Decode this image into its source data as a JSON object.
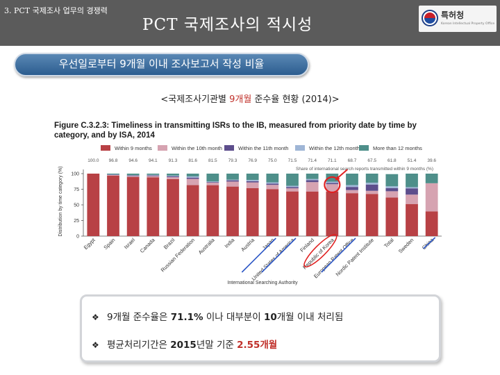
{
  "header": {
    "section_label": "3. PCT 국제조사 업무의 경쟁력",
    "title": "PCT 국제조사의 적시성",
    "logo_name": "특허청",
    "logo_sub": "Korean Intellectual Property Office"
  },
  "banner": {
    "text": "우선일로부터 9개월 이내 조사보고서 작성 비율"
  },
  "caption": {
    "before": "<국제조사기관별 ",
    "highlight": "9개월",
    "after": " 준수율 현황 (2014)>"
  },
  "figure": {
    "title_line1": "Figure C.3.2.3: Timeliness in transmitting ISRs to the IB, measured from priority date by time by",
    "title_line2": "category, and by ISA, 2014"
  },
  "chart_data": {
    "type": "bar",
    "stacked": true,
    "percent_scale": true,
    "ylabel": "Distribution by time category (%)",
    "xlabel": "International Searching Authority",
    "ylim": [
      0,
      100
    ],
    "yticks": [
      0,
      25,
      50,
      75,
      100
    ],
    "share_label": "Share of international search reports transmitted within 9 months (%)",
    "categories": [
      "Egypt",
      "Spain",
      "Israel",
      "Canada",
      "Brazil",
      "Russian Federation",
      "Australia",
      "India",
      "Austria",
      "Japan",
      "United States of America",
      "Finland",
      "Republic of Korea",
      "European Patent Office",
      "Nordic Patent Institute",
      "Total",
      "Sweden",
      "China"
    ],
    "share_labels": [
      "100.0",
      "96.8",
      "94.6",
      "94.1",
      "91.3",
      "81.6",
      "81.5",
      "79.3",
      "76.9",
      "75.0",
      "71.5",
      "71.4",
      "71.1",
      "68.7",
      "67.5",
      "61.8",
      "51.4",
      "39.6"
    ],
    "series": [
      {
        "name": "Within 9 months",
        "color": "#b84145",
        "values": [
          100.0,
          96.8,
          94.6,
          94.1,
          91.3,
          81.6,
          81.5,
          79.3,
          76.9,
          75.0,
          71.5,
          71.4,
          71.1,
          68.7,
          67.5,
          61.8,
          51.4,
          39.6
        ]
      },
      {
        "name": "Within the 10th month",
        "color": "#d6a3b1",
        "values": [
          0,
          1.0,
          1.5,
          2.0,
          3.0,
          10.0,
          4.0,
          8.0,
          9.0,
          7.0,
          5.0,
          15.0,
          12.0,
          5.0,
          5.0,
          10.0,
          15.0,
          45.0
        ]
      },
      {
        "name": "Within the 11th month",
        "color": "#5d4e8c",
        "values": [
          0,
          0.5,
          1.0,
          1.0,
          1.5,
          2.0,
          1.0,
          2.0,
          2.0,
          2.0,
          2.0,
          3.0,
          2.0,
          5.0,
          10.0,
          5.0,
          10.0,
          0
        ]
      },
      {
        "name": "Within the 12th month",
        "color": "#9fb6d6",
        "values": [
          0,
          0.5,
          0.5,
          1.0,
          1.0,
          2.0,
          1.0,
          1.0,
          2.0,
          2.0,
          2.0,
          2.0,
          2.0,
          3.0,
          3.0,
          3.0,
          2.0,
          0
        ]
      },
      {
        "name": "More than 12 months",
        "color": "#4e8f8a",
        "values": [
          0,
          1.2,
          2.4,
          1.9,
          3.2,
          4.4,
          12.5,
          9.7,
          10.1,
          14.0,
          19.5,
          8.6,
          12.9,
          18.3,
          14.5,
          19.4,
          21.6,
          15.4
        ]
      }
    ]
  },
  "callout": {
    "bullet1": {
      "mark": "❖",
      "p1": "9개월 준수율은 ",
      "v1": "71.1%",
      "p2": " 이나 대부분이 ",
      "v2": "10",
      "p3": "개월 이내 처리됨"
    },
    "bullet2": {
      "mark": "❖",
      "p1": "평균처리기간은 ",
      "v1": "2015",
      "p2": "년말 기준 ",
      "v2": "2.55",
      "p3": "개월"
    }
  }
}
